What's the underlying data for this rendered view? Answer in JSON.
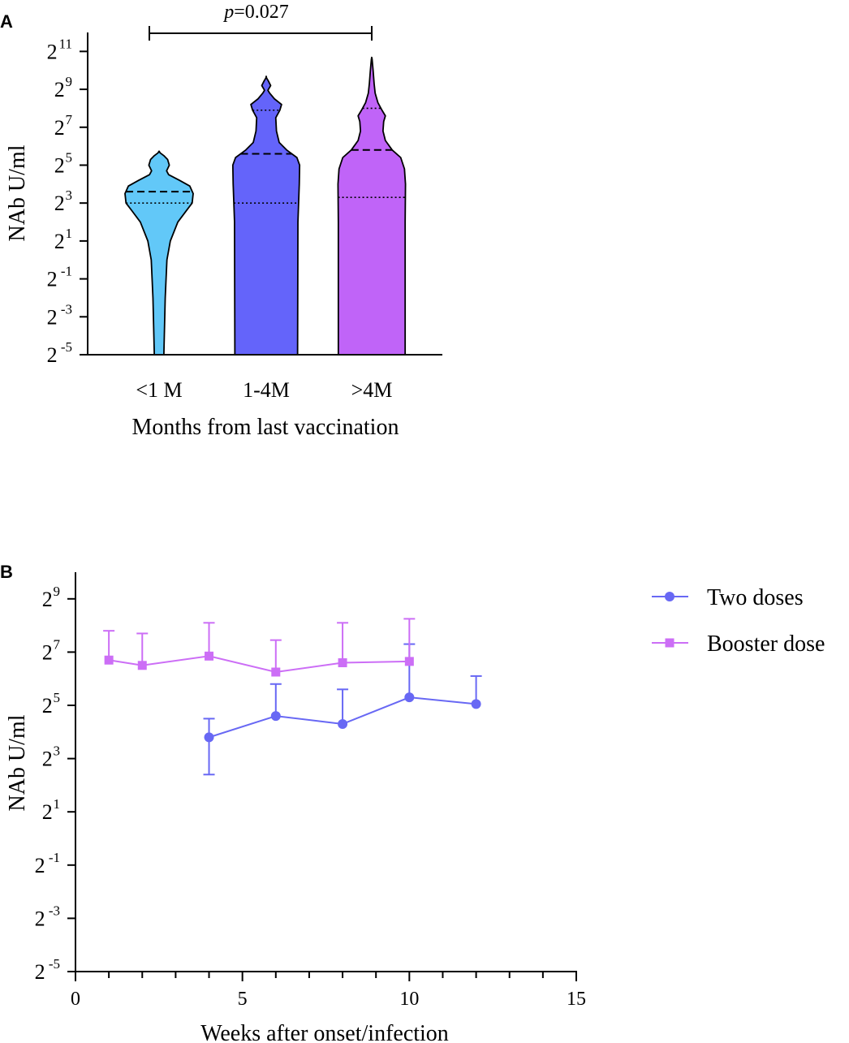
{
  "panel_a_label": "A",
  "panel_b_label": "B",
  "chart_data": [
    {
      "type": "violin",
      "panel": "A",
      "ylabel": "NAb U/ml",
      "xlabel": "Months from last vaccination",
      "y_scale": "log2",
      "ylim_exp": [
        -5,
        12
      ],
      "y_ticks": [
        {
          "base": "2",
          "exp": "11",
          "value": 11
        },
        {
          "base": "2",
          "exp": "9",
          "value": 9
        },
        {
          "base": "2",
          "exp": "7",
          "value": 7
        },
        {
          "base": "2",
          "exp": "5",
          "value": 5
        },
        {
          "base": "2",
          "exp": "3",
          "value": 3
        },
        {
          "base": "2",
          "exp": "1",
          "value": 1
        },
        {
          "base": "2",
          "exp": "-1",
          "value": -1
        },
        {
          "base": "2",
          "exp": "-3",
          "value": -3
        },
        {
          "base": "2",
          "exp": "-5",
          "value": -5
        }
      ],
      "categories": [
        "<1 M",
        "1-4M",
        ">4M"
      ],
      "series": [
        {
          "name": "<1 M",
          "color": "#62C8F8",
          "median_exp": 3.6,
          "quartile_exp": 3.0,
          "profile": [
            [
              -5,
              0.14
            ],
            [
              -2,
              0.18
            ],
            [
              0,
              0.23
            ],
            [
              1,
              0.33
            ],
            [
              2,
              0.55
            ],
            [
              2.6,
              0.8
            ],
            [
              3.0,
              0.97
            ],
            [
              3.5,
              1.0
            ],
            [
              3.9,
              0.9
            ],
            [
              4.2,
              0.6
            ],
            [
              4.5,
              0.28
            ],
            [
              4.7,
              0.22
            ],
            [
              5.0,
              0.3
            ],
            [
              5.3,
              0.25
            ],
            [
              5.5,
              0.14
            ],
            [
              5.65,
              0.03
            ]
          ]
        },
        {
          "name": "1-4M",
          "color": "#6464FA",
          "median_exp": 5.6,
          "quartile_exp": 3.0,
          "upper_quartile_exp": 7.9,
          "profile": [
            [
              -5,
              0.92
            ],
            [
              2,
              0.93
            ],
            [
              4,
              0.97
            ],
            [
              5,
              0.98
            ],
            [
              5.4,
              0.9
            ],
            [
              5.8,
              0.6
            ],
            [
              6.2,
              0.38
            ],
            [
              6.8,
              0.3
            ],
            [
              7.5,
              0.28
            ],
            [
              7.9,
              0.4
            ],
            [
              8.2,
              0.45
            ],
            [
              8.5,
              0.24
            ],
            [
              8.8,
              0.1
            ],
            [
              8.95,
              0.05
            ],
            [
              9.2,
              0.13
            ],
            [
              9.45,
              0.06
            ],
            [
              9.6,
              0.01
            ]
          ]
        },
        {
          "name": ">4M",
          "color": "#C064F8",
          "median_exp": 5.8,
          "quartile_exp": 3.3,
          "upper_quartile_exp": 8.0,
          "profile": [
            [
              -5,
              0.98
            ],
            [
              2,
              0.98
            ],
            [
              4,
              0.99
            ],
            [
              4.8,
              0.96
            ],
            [
              5.4,
              0.85
            ],
            [
              5.8,
              0.6
            ],
            [
              6.3,
              0.4
            ],
            [
              6.8,
              0.33
            ],
            [
              7.3,
              0.35
            ],
            [
              7.6,
              0.4
            ],
            [
              7.9,
              0.3
            ],
            [
              8.3,
              0.18
            ],
            [
              8.8,
              0.1
            ],
            [
              9.3,
              0.07
            ],
            [
              10.0,
              0.04
            ],
            [
              10.6,
              0.01
            ]
          ]
        }
      ],
      "annotation": {
        "p_label": "p",
        "p_value": "=0.027",
        "from": "<1 M",
        "to": ">4M"
      }
    },
    {
      "type": "line",
      "panel": "B",
      "xlabel": "Weeks after onset/infection",
      "ylabel": "NAb U/ml",
      "y_scale": "log2",
      "xlim": [
        0,
        15
      ],
      "x_ticks": [
        {
          "label": "0",
          "value": 0
        },
        {
          "label": "5",
          "value": 5
        },
        {
          "label": "10",
          "value": 10
        },
        {
          "label": "15",
          "value": 15
        }
      ],
      "ylim_exp": [
        -5,
        10
      ],
      "y_ticks": [
        {
          "base": "2",
          "exp": "9",
          "value": 9
        },
        {
          "base": "2",
          "exp": "7",
          "value": 7
        },
        {
          "base": "2",
          "exp": "5",
          "value": 5
        },
        {
          "base": "2",
          "exp": "3",
          "value": 3
        },
        {
          "base": "2",
          "exp": "1",
          "value": 1
        },
        {
          "base": "2",
          "exp": "-1",
          "value": -1
        },
        {
          "base": "2",
          "exp": "-3",
          "value": -3
        },
        {
          "base": "2",
          "exp": "-5",
          "value": -5
        }
      ],
      "series": [
        {
          "name": "Two doses",
          "color": "#6868F4",
          "marker": "circle",
          "x": [
            4,
            6,
            8,
            10,
            12
          ],
          "y_exp": [
            3.8,
            4.6,
            4.3,
            5.3,
            5.05
          ],
          "err_upper_exp": [
            4.5,
            5.8,
            5.6,
            7.3,
            6.1
          ],
          "err_lower_exp": [
            2.4,
            null,
            null,
            null,
            null
          ]
        },
        {
          "name": "Booster dose",
          "color": "#CC6EF6",
          "marker": "square",
          "x": [
            1,
            2,
            4,
            6,
            8,
            10
          ],
          "y_exp": [
            6.7,
            6.5,
            6.85,
            6.25,
            6.6,
            6.65
          ],
          "err_upper_exp": [
            7.8,
            7.7,
            8.1,
            7.45,
            8.1,
            8.25
          ],
          "err_lower_exp": [
            null,
            null,
            null,
            null,
            null,
            null
          ]
        }
      ],
      "legend": "top-right"
    }
  ]
}
